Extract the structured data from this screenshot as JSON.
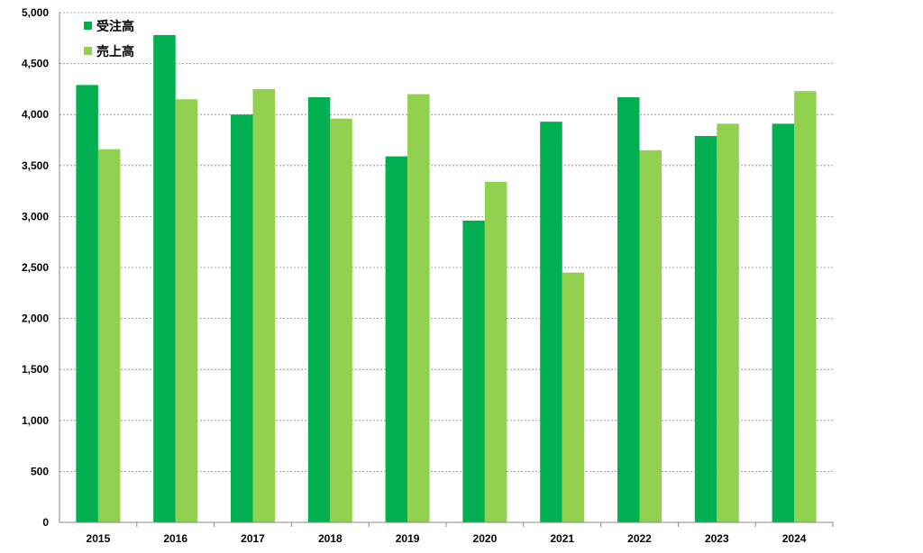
{
  "chart_data": {
    "type": "bar",
    "categories": [
      "2015",
      "2016",
      "2017",
      "2018",
      "2019",
      "2020",
      "2021",
      "2022",
      "2023",
      "2024"
    ],
    "series": [
      {
        "name": "受注高",
        "color": "#00b050",
        "values": [
          4290,
          4780,
          4000,
          4170,
          3590,
          2960,
          3930,
          4170,
          3790,
          3910
        ]
      },
      {
        "name": "売上高",
        "color": "#92d050",
        "values": [
          3660,
          4150,
          4250,
          3960,
          4200,
          3340,
          2450,
          3650,
          3910,
          4230
        ]
      }
    ],
    "ylim": [
      0,
      5000
    ],
    "yticks": [
      "0",
      "500",
      "1,000",
      "1,500",
      "2,000",
      "2,500",
      "3,000",
      "3,500",
      "4,000",
      "4,500",
      "5,000"
    ],
    "grid": true,
    "legend": "top-left"
  }
}
